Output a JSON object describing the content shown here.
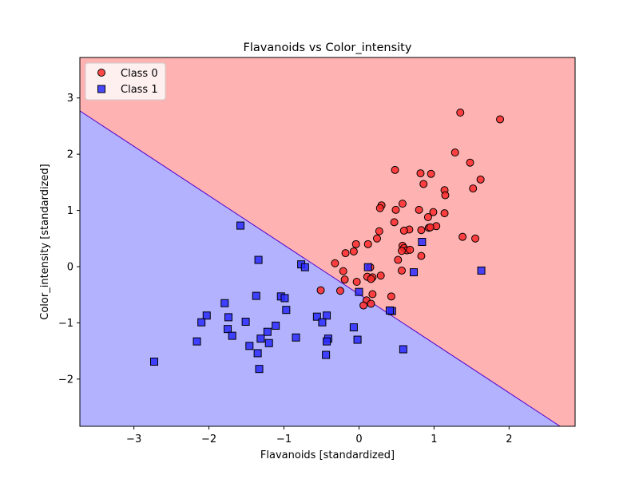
{
  "chart_data": {
    "type": "scatter",
    "title": "Flavanoids vs Color_intensity",
    "xlabel": "Flavanoids [standardized]",
    "ylabel": "Color_intensity [standardized]",
    "xlim": [
      -3.72,
      2.88
    ],
    "ylim": [
      -2.84,
      3.72
    ],
    "xticks": [
      -3,
      -2,
      -1,
      0,
      1,
      2
    ],
    "yticks": [
      -2,
      -1,
      0,
      1,
      2,
      3
    ],
    "xtick_labels": [
      "−3",
      "−2",
      "−1",
      "0",
      "1",
      "2"
    ],
    "ytick_labels": [
      "−2",
      "−1",
      "0",
      "1",
      "2",
      "3"
    ],
    "grid": false,
    "legend_position": "top-left",
    "decision_boundary": {
      "line": [
        [
          -3.72,
          2.77
        ],
        [
          2.68,
          -2.84
        ]
      ],
      "region_above": "Class 0",
      "region_below": "Class 1",
      "colors": {
        "Class 0": "#ffb2b2",
        "Class 1": "#b2b2ff",
        "boundary": "#5500cc"
      }
    },
    "series": [
      {
        "name": "Class 0",
        "marker": "circle",
        "color": "#ff2a2a",
        "points": [
          [
            1.35,
            2.74
          ],
          [
            1.88,
            2.62
          ],
          [
            1.28,
            2.03
          ],
          [
            1.48,
            1.85
          ],
          [
            0.48,
            1.72
          ],
          [
            0.82,
            1.66
          ],
          [
            0.96,
            1.65
          ],
          [
            1.62,
            1.55
          ],
          [
            0.86,
            1.47
          ],
          [
            1.52,
            1.39
          ],
          [
            1.14,
            1.36
          ],
          [
            1.15,
            1.27
          ],
          [
            0.3,
            1.09
          ],
          [
            0.58,
            1.12
          ],
          [
            0.28,
            1.04
          ],
          [
            0.49,
            1.01
          ],
          [
            0.8,
            1.01
          ],
          [
            0.99,
            0.97
          ],
          [
            1.14,
            0.95
          ],
          [
            0.92,
            0.88
          ],
          [
            0.47,
            0.79
          ],
          [
            1.03,
            0.72
          ],
          [
            0.93,
            0.69
          ],
          [
            0.95,
            0.7
          ],
          [
            0.67,
            0.66
          ],
          [
            0.6,
            0.64
          ],
          [
            0.83,
            0.65
          ],
          [
            0.27,
            0.63
          ],
          [
            0.24,
            0.5
          ],
          [
            1.38,
            0.53
          ],
          [
            1.55,
            0.5
          ],
          [
            -0.04,
            0.4
          ],
          [
            0.12,
            0.4
          ],
          [
            0.58,
            0.37
          ],
          [
            0.6,
            0.33
          ],
          [
            0.64,
            0.29
          ],
          [
            0.68,
            0.3
          ],
          [
            0.57,
            0.28
          ],
          [
            -0.18,
            0.24
          ],
          [
            -0.07,
            0.27
          ],
          [
            0.52,
            0.12
          ],
          [
            0.83,
            0.19
          ],
          [
            -0.32,
            0.06
          ],
          [
            0.15,
            -0.01
          ],
          [
            -0.21,
            -0.08
          ],
          [
            0.57,
            -0.07
          ],
          [
            0.11,
            -0.18
          ],
          [
            0.29,
            -0.16
          ],
          [
            0.18,
            -0.19
          ],
          [
            0.16,
            -0.22
          ],
          [
            -0.19,
            -0.23
          ],
          [
            -0.03,
            -0.27
          ],
          [
            -0.51,
            -0.42
          ],
          [
            -0.25,
            -0.43
          ],
          [
            0.18,
            -0.49
          ],
          [
            0.43,
            -0.53
          ],
          [
            0.1,
            -0.6
          ],
          [
            0.16,
            -0.66
          ],
          [
            0.06,
            -0.69
          ]
        ]
      },
      {
        "name": "Class 1",
        "marker": "square",
        "color": "#2a2aff",
        "points": [
          [
            -1.58,
            0.73
          ],
          [
            -1.34,
            0.12
          ],
          [
            -0.77,
            0.04
          ],
          [
            -0.72,
            -0.01
          ],
          [
            0.12,
            -0.01
          ],
          [
            0.73,
            -0.1
          ],
          [
            1.63,
            -0.07
          ],
          [
            0.84,
            0.44
          ],
          [
            -1.37,
            -0.52
          ],
          [
            -1.04,
            -0.53
          ],
          [
            -0.99,
            -0.56
          ],
          [
            -1.79,
            -0.65
          ],
          [
            -0.97,
            -0.77
          ],
          [
            -2.03,
            -0.87
          ],
          [
            -1.74,
            -0.9
          ],
          [
            -0.56,
            -0.89
          ],
          [
            -0.43,
            -0.87
          ],
          [
            -0.49,
            -0.99
          ],
          [
            -2.1,
            -0.99
          ],
          [
            -1.51,
            -0.98
          ],
          [
            -1.11,
            -1.05
          ],
          [
            -1.75,
            -1.11
          ],
          [
            -0.07,
            -1.08
          ],
          [
            -1.69,
            -1.23
          ],
          [
            -1.22,
            -1.16
          ],
          [
            -0.84,
            -1.26
          ],
          [
            -1.31,
            -1.28
          ],
          [
            -0.41,
            -1.28
          ],
          [
            -0.43,
            -1.33
          ],
          [
            -2.16,
            -1.33
          ],
          [
            -0.02,
            -1.3
          ],
          [
            -1.2,
            -1.36
          ],
          [
            -1.46,
            -1.41
          ],
          [
            -1.35,
            -1.54
          ],
          [
            -0.44,
            -1.57
          ],
          [
            0.59,
            -1.47
          ],
          [
            -2.73,
            -1.69
          ],
          [
            -1.33,
            -1.82
          ],
          [
            0.0,
            -0.45
          ],
          [
            0.44,
            -0.79
          ],
          [
            0.41,
            -0.78
          ]
        ]
      }
    ]
  }
}
